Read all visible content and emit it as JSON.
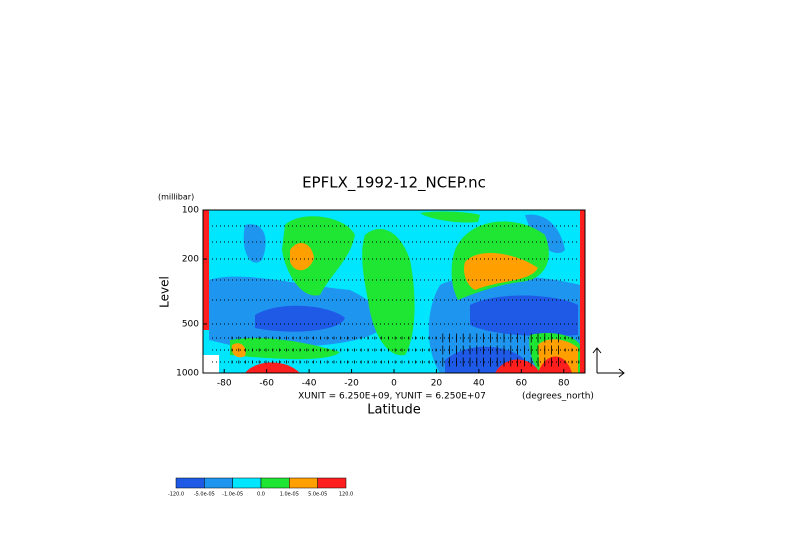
{
  "chart_data": {
    "type": "contour",
    "title": "EPFLX_1992-12_NCEP.nc",
    "y_label": "Level",
    "y_unit": "(millibar)",
    "x_label": "Latitude",
    "x_unit": "(degrees_north)",
    "vector_unit": "XUNIT = 6.250E+09, YUNIT = 6.250E+07",
    "xlim": [
      -90,
      90
    ],
    "xticks": [
      -80,
      -60,
      -40,
      -20,
      0,
      20,
      40,
      60,
      80
    ],
    "ylim": [
      1000,
      100
    ],
    "yticks": [
      100,
      200,
      500,
      1000
    ],
    "ylog": true,
    "levels": [
      {
        "value": -120,
        "label": "-120.0"
      },
      {
        "value": -5e-05,
        "label": "-5.0e-05"
      },
      {
        "value": -1e-05,
        "label": "-1.0e-05"
      },
      {
        "value": 0,
        "label": "0.0"
      },
      {
        "value": 1e-05,
        "label": "1.0e-05"
      },
      {
        "value": 5e-05,
        "label": "5.0e-05"
      },
      {
        "value": 120,
        "label": "120.0"
      }
    ],
    "colors": [
      "#1e5ae6",
      "#1e96f0",
      "#00e6ff",
      "#1ee632",
      "#ffa000",
      "#ff1e1e"
    ]
  }
}
